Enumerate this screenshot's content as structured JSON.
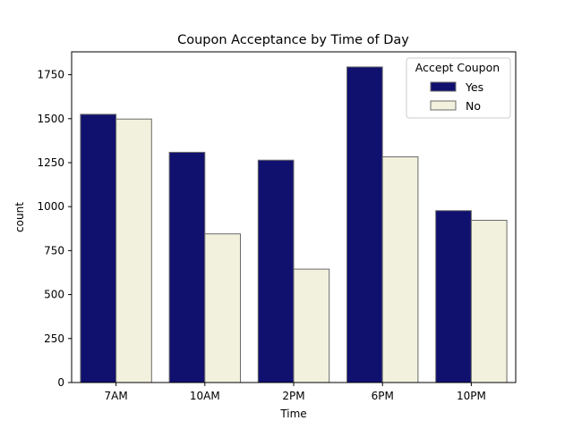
{
  "chart_data": {
    "type": "bar",
    "title": "Coupon Acceptance by Time of Day",
    "xlabel": "Time",
    "ylabel": "count",
    "categories": [
      "7AM",
      "10AM",
      "2PM",
      "6PM",
      "10PM"
    ],
    "series": [
      {
        "name": "Yes",
        "values": [
          1525,
          1309,
          1264,
          1794,
          977
        ],
        "color": "#10106f"
      },
      {
        "name": "No",
        "values": [
          1498,
          845,
          645,
          1283,
          922
        ],
        "color": "#f2f1dd"
      }
    ],
    "bar_edge_color": "#6b6b6b",
    "ylim": [
      0,
      1880
    ],
    "yticks": [
      0,
      250,
      500,
      750,
      1000,
      1250,
      1500,
      1750
    ],
    "grid": false,
    "legend": {
      "title": "Accept Coupon",
      "position": "top-right"
    }
  }
}
